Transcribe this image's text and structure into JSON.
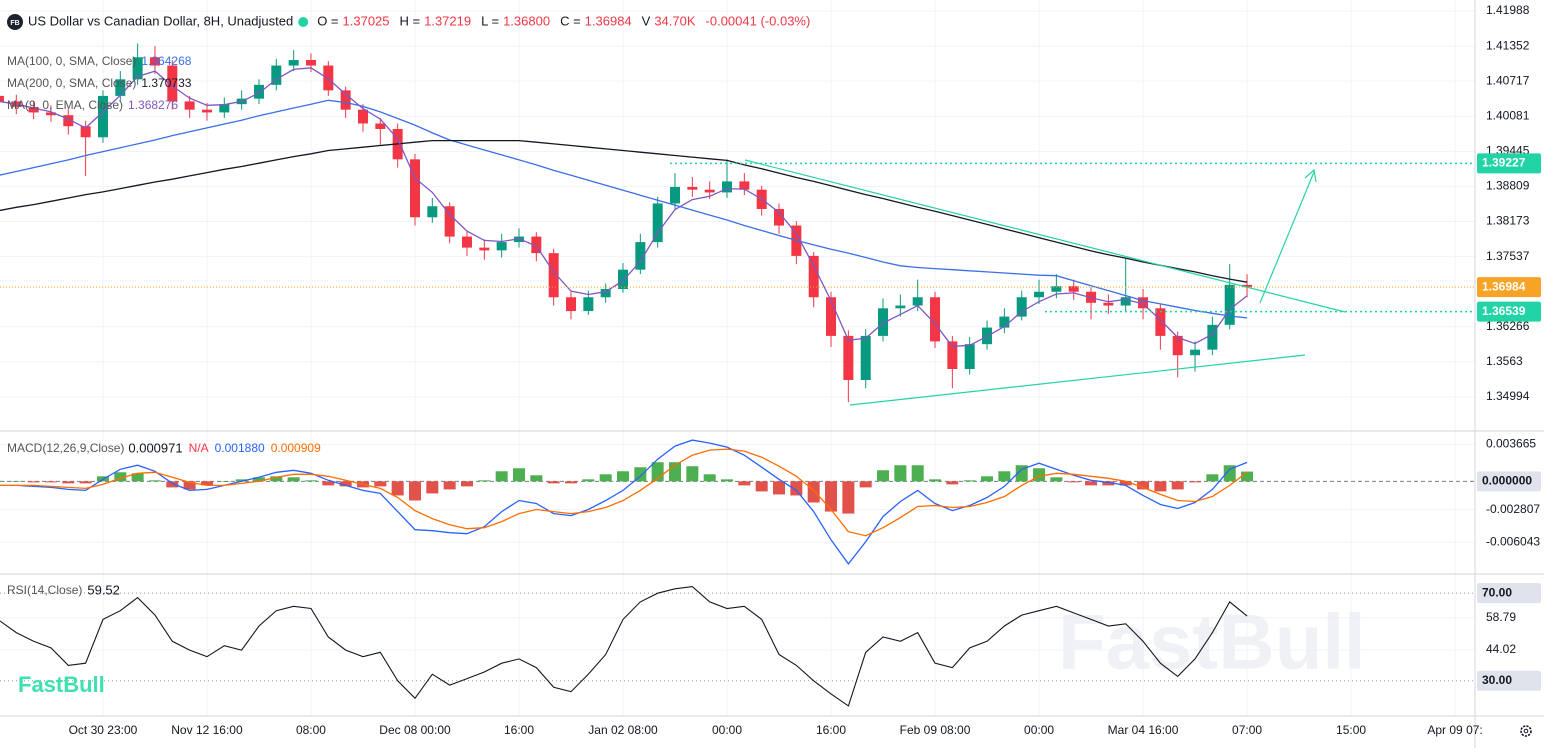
{
  "header": {
    "logo": "FB",
    "symbol": "US Dollar vs Canadian Dollar, 8H, Unadjusted",
    "stats": [
      {
        "label": "O =",
        "value": "1.37025"
      },
      {
        "label": "H =",
        "value": "1.37219"
      },
      {
        "label": "L =",
        "value": "1.36800"
      },
      {
        "label": "C =",
        "value": "1.36984"
      },
      {
        "label": "V",
        "value": "34.70K"
      }
    ],
    "change": "-0.00041 (-0.03%)",
    "watermark": "FastBull"
  },
  "chart_data": [
    {
      "type": "candlestick",
      "up_color": "#089981",
      "down_color": "#f23645",
      "xlim": [
        0.06,
        85.15
      ],
      "xticks": [
        {
          "value": 6,
          "label": "Oct 30 23:00"
        },
        {
          "value": 12,
          "label": "Nov 12 16:00"
        },
        {
          "value": 18,
          "label": "08:00"
        },
        {
          "value": 24,
          "label": "Dec 08 00:00"
        },
        {
          "value": 30,
          "label": "16:00"
        },
        {
          "value": 36,
          "label": "Jan 02 08:00"
        },
        {
          "value": 42,
          "label": "00:00"
        },
        {
          "value": 48,
          "label": "16:00"
        },
        {
          "value": 54,
          "label": "Feb 09 08:00"
        },
        {
          "value": 60,
          "label": "00:00"
        },
        {
          "value": 66,
          "label": "Mar 04 16:00"
        },
        {
          "value": 72,
          "label": "07:00"
        },
        {
          "value": 78,
          "label": "15:00"
        },
        {
          "value": 84,
          "label": "Apr 09 07:"
        }
      ],
      "ylim": [
        1.34376,
        1.42188
      ],
      "yticks": [
        1.41988,
        1.41352,
        1.40717,
        1.40081,
        1.39445,
        1.38809,
        1.38173,
        1.37537,
        1.36266,
        1.3563,
        1.34994
      ],
      "last_price_color": "#f7a325",
      "price_markers": [
        {
          "value": 1.39227,
          "color": "#22d3a5"
        },
        {
          "value": 1.36539,
          "color": "#22d3a5"
        }
      ],
      "open": [
        1.4045,
        1.4035,
        1.4025,
        1.4015,
        1.401,
        1.399,
        1.397,
        1.4045,
        1.4075,
        1.4115,
        1.41,
        1.4035,
        1.402,
        1.4015,
        1.403,
        1.404,
        1.4065,
        1.41,
        1.411,
        1.41,
        1.4055,
        1.402,
        1.3995,
        1.3985,
        1.393,
        1.3825,
        1.3845,
        1.379,
        1.377,
        1.3765,
        1.378,
        1.379,
        1.376,
        1.368,
        1.3655,
        1.368,
        1.3695,
        1.373,
        1.378,
        1.385,
        1.388,
        1.3875,
        1.387,
        1.389,
        1.3875,
        1.384,
        1.381,
        1.3755,
        1.368,
        1.361,
        1.353,
        1.361,
        1.366,
        1.3665,
        1.368,
        1.36,
        1.355,
        1.3595,
        1.3625,
        1.3645,
        1.368,
        1.369,
        1.37,
        1.369,
        1.367,
        1.3665,
        1.368,
        1.366,
        1.361,
        1.3575,
        1.3585,
        1.363,
        1.37025
      ],
      "high": [
        1.4058,
        1.4047,
        1.4036,
        1.4028,
        1.4021,
        1.4,
        1.4055,
        1.409,
        1.414,
        1.4135,
        1.411,
        1.4045,
        1.4032,
        1.4042,
        1.4055,
        1.4075,
        1.4112,
        1.4128,
        1.4122,
        1.4108,
        1.4062,
        1.403,
        1.4005,
        1.3995,
        1.394,
        1.386,
        1.3852,
        1.38,
        1.3785,
        1.3795,
        1.3805,
        1.3798,
        1.3768,
        1.369,
        1.3692,
        1.3705,
        1.3742,
        1.3795,
        1.3862,
        1.3905,
        1.3898,
        1.389,
        1.393,
        1.3905,
        1.3882,
        1.385,
        1.3818,
        1.3762,
        1.369,
        1.362,
        1.3622,
        1.3678,
        1.3685,
        1.3712,
        1.369,
        1.361,
        1.3608,
        1.3638,
        1.366,
        1.3692,
        1.3712,
        1.3722,
        1.3712,
        1.3698,
        1.3685,
        1.375,
        1.3695,
        1.3668,
        1.3618,
        1.36,
        1.3645,
        1.374,
        1.37219
      ],
      "low": [
        1.4022,
        1.4012,
        1.4003,
        1.3998,
        1.3975,
        1.39,
        1.396,
        1.4035,
        1.4065,
        1.4085,
        1.402,
        1.4005,
        1.4,
        1.4005,
        1.402,
        1.403,
        1.4055,
        1.409,
        1.4088,
        1.4045,
        1.4005,
        1.398,
        1.3955,
        1.3915,
        1.381,
        1.3815,
        1.3778,
        1.3755,
        1.3748,
        1.3752,
        1.377,
        1.3745,
        1.3665,
        1.364,
        1.3648,
        1.367,
        1.3688,
        1.3722,
        1.377,
        1.384,
        1.3862,
        1.3858,
        1.386,
        1.3865,
        1.3828,
        1.3795,
        1.374,
        1.3662,
        1.359,
        1.349,
        1.3515,
        1.36,
        1.3645,
        1.3655,
        1.3588,
        1.3515,
        1.354,
        1.3585,
        1.3615,
        1.3638,
        1.3668,
        1.3678,
        1.3675,
        1.364,
        1.365,
        1.3655,
        1.364,
        1.3585,
        1.3535,
        1.3545,
        1.3575,
        1.3622,
        1.368
      ],
      "close": [
        1.4035,
        1.4025,
        1.4015,
        1.401,
        1.399,
        1.397,
        1.4045,
        1.4075,
        1.4115,
        1.41,
        1.4035,
        1.402,
        1.4015,
        1.403,
        1.404,
        1.4065,
        1.41,
        1.411,
        1.41,
        1.4055,
        1.402,
        1.3995,
        1.3985,
        1.393,
        1.3825,
        1.3845,
        1.379,
        1.377,
        1.3765,
        1.378,
        1.379,
        1.376,
        1.368,
        1.3655,
        1.368,
        1.3695,
        1.373,
        1.378,
        1.385,
        1.388,
        1.3875,
        1.387,
        1.389,
        1.3875,
        1.384,
        1.381,
        1.3755,
        1.368,
        1.361,
        1.353,
        1.361,
        1.366,
        1.3665,
        1.368,
        1.36,
        1.355,
        1.3595,
        1.3625,
        1.3645,
        1.368,
        1.369,
        1.37,
        1.369,
        1.367,
        1.3665,
        1.368,
        1.366,
        1.361,
        1.3575,
        1.3585,
        1.363,
        1.37025,
        1.36984
      ],
      "overlays": [
        {
          "name": "MA(100, 0, SMA, Close)",
          "color": "#3b6ee8",
          "values": [
            1.3901,
            1.3908,
            1.3915,
            1.3922,
            1.3929,
            1.3937,
            1.3944,
            1.3951,
            1.3958,
            1.3965,
            1.3973,
            1.398,
            1.3987,
            1.3994,
            1.4001,
            1.4009,
            1.4016,
            1.4023,
            1.403,
            1.4037,
            1.4033,
            1.4026,
            1.4016,
            1.4004,
            1.3992,
            1.3978,
            1.3965,
            1.3956,
            1.3947,
            1.3938,
            1.3929,
            1.392,
            1.391,
            1.3901,
            1.3892,
            1.3883,
            1.3874,
            1.3865,
            1.3856,
            1.3847,
            1.3838,
            1.3829,
            1.382,
            1.381,
            1.3801,
            1.3792,
            1.3783,
            1.3775,
            1.3767,
            1.376,
            1.3752,
            1.3744,
            1.3737,
            1.3734,
            1.3732,
            1.373,
            1.3728,
            1.3726,
            1.3724,
            1.3722,
            1.372,
            1.3719,
            1.371,
            1.3701,
            1.3692,
            1.3683,
            1.3674,
            1.3668,
            1.3662,
            1.3656,
            1.3651,
            1.3646,
            1.364268
          ]
        },
        {
          "name": "MA(200, 0, SMA, Close)",
          "color": "#131722",
          "values": [
            1.3837,
            1.3843,
            1.3848,
            1.3854,
            1.386,
            1.3866,
            1.3871,
            1.3877,
            1.3883,
            1.3889,
            1.3894,
            1.39,
            1.3906,
            1.3912,
            1.3917,
            1.3923,
            1.3929,
            1.3935,
            1.394,
            1.3946,
            1.3949,
            1.3952,
            1.3955,
            1.3958,
            1.3961,
            1.3964,
            1.3964,
            1.3964,
            1.3964,
            1.3964,
            1.3964,
            1.3961,
            1.3958,
            1.3955,
            1.3952,
            1.3949,
            1.3946,
            1.3943,
            1.394,
            1.3937,
            1.3934,
            1.3931,
            1.3928,
            1.392,
            1.3913,
            1.3905,
            1.3897,
            1.389,
            1.3882,
            1.3874,
            1.3866,
            1.3859,
            1.3851,
            1.3843,
            1.3836,
            1.3828,
            1.382,
            1.3812,
            1.3804,
            1.3796,
            1.3788,
            1.378,
            1.3772,
            1.3764,
            1.3757,
            1.3751,
            1.3744,
            1.3738,
            1.3732,
            1.3726,
            1.3719,
            1.3713,
            1.370733
          ]
        },
        {
          "name": "MA(9, 0, EMA, Close)",
          "color": "#7e57c2",
          "values": [
            1.4035,
            1.403,
            1.4023,
            1.4016,
            1.4003,
            1.3987,
            1.4016,
            1.4046,
            1.408,
            1.409,
            1.4063,
            1.4041,
            1.4028,
            1.4029,
            1.4035,
            1.405,
            1.4075,
            1.4093,
            1.4096,
            1.4076,
            1.4048,
            1.4022,
            1.4003,
            1.3967,
            1.3896,
            1.387,
            1.383,
            1.38,
            1.3783,
            1.3781,
            1.3786,
            1.3773,
            1.3726,
            1.3691,
            1.3685,
            1.369,
            1.371,
            1.3745,
            1.3797,
            1.3839,
            1.3857,
            1.3863,
            1.3877,
            1.3876,
            1.3858,
            1.3834,
            1.3795,
            1.3737,
            1.3674,
            1.3602,
            1.3606,
            1.3633,
            1.3649,
            1.3665,
            1.3632,
            1.3591,
            1.3593,
            1.3609,
            1.3627,
            1.3654,
            1.3672,
            1.3686,
            1.3688,
            1.3679,
            1.3672,
            1.3676,
            1.3668,
            1.3639,
            1.3607,
            1.3596,
            1.3613,
            1.3658,
            1.368276
          ]
        }
      ]
    },
    {
      "type": "macd",
      "title": "MACD(12,26,9,Close)",
      "na_label": "N/A",
      "ylim": [
        -0.0092,
        0.0049
      ],
      "yticks": [
        0.003665,
        -0.002807,
        -0.006043
      ],
      "zero_marker": {
        "value": 0,
        "label": "0.000000"
      },
      "histogram": {
        "pos_color": "#4caf50",
        "neg_color": "#e0524a",
        "values": [
          0,
          0,
          -0.0001,
          -0.0001,
          -0.0002,
          -0.0002,
          0.0005,
          0.0009,
          0.0008,
          0.0001,
          -0.0006,
          -0.0008,
          -0.0004,
          0,
          0.0002,
          0.0004,
          0.0005,
          0.0004,
          0.0001,
          -0.0004,
          -0.0005,
          -0.0006,
          -0.0005,
          -0.0014,
          -0.0019,
          -0.0012,
          -0.0008,
          -0.0005,
          0.0001,
          0.001,
          0.0013,
          0.0006,
          -0.0002,
          -0.0002,
          0.0002,
          0.0007,
          0.001,
          0.0014,
          0.0019,
          0.0019,
          0.0015,
          0.0007,
          0.0002,
          -0.0004,
          -0.001,
          -0.0013,
          -0.0014,
          -0.0021,
          -0.003,
          -0.0032,
          -0.0006,
          0.0011,
          0.0016,
          0.0016,
          0.0002,
          -0.0003,
          0.0001,
          0.0005,
          0.001,
          0.0016,
          0.0013,
          0.0004,
          -0.0001,
          -0.0004,
          -0.0004,
          -0.0004,
          -0.0008,
          -0.001,
          -0.0008,
          -0.0001,
          0.0007,
          0.0016,
          0.000971
        ]
      },
      "series": [
        {
          "name": "MACD",
          "color": "#2962ff",
          "legend_value": "0.001880",
          "values": [
            -0.0004,
            -0.0004,
            -0.0005,
            -0.0006,
            -0.0008,
            -0.0009,
            0.0002,
            0.0012,
            0.0016,
            0.001,
            -0.0002,
            -0.0009,
            -0.0008,
            -0.0004,
            0,
            0.0004,
            0.0009,
            0.0011,
            0.0008,
            0.0001,
            -0.0004,
            -0.0009,
            -0.0012,
            -0.003,
            -0.0048,
            -0.0049,
            -0.0051,
            -0.0052,
            -0.0045,
            -0.003,
            -0.0019,
            -0.0022,
            -0.0032,
            -0.0034,
            -0.0028,
            -0.0019,
            -0.0009,
            0.0005,
            0.0022,
            0.0035,
            0.0041,
            0.0038,
            0.0034,
            0.0026,
            0.0014,
            0.0002,
            -0.0009,
            -0.003,
            -0.0058,
            -0.0082,
            -0.006,
            -0.0035,
            -0.002,
            -0.0009,
            -0.0022,
            -0.0029,
            -0.0024,
            -0.0016,
            -0.0005,
            0.0012,
            0.0018,
            0.0012,
            0.0006,
            0.0001,
            -0.0001,
            -0.0004,
            -0.0014,
            -0.0023,
            -0.0027,
            -0.0021,
            -0.0008,
            0.0012,
            0.00188
          ]
        },
        {
          "name": "Signal",
          "color": "#ff6d00",
          "values": [
            -0.0004,
            -0.0004,
            -0.0004,
            -0.0005,
            -0.0006,
            -0.0007,
            -0.0003,
            0.0003,
            0.0008,
            0.0009,
            0.0004,
            -0.0001,
            -0.0004,
            -0.0004,
            -0.0002,
            0,
            0.0004,
            0.0007,
            0.0007,
            0.0005,
            0.0001,
            -0.0003,
            -0.0007,
            -0.0016,
            -0.0029,
            -0.0037,
            -0.0043,
            -0.0047,
            -0.0046,
            -0.004,
            -0.0032,
            -0.0028,
            -0.003,
            -0.0032,
            -0.003,
            -0.0026,
            -0.0019,
            -0.0009,
            0.0003,
            0.0016,
            0.0026,
            0.0031,
            0.0032,
            0.003,
            0.0024,
            0.0015,
            0.0005,
            -0.0009,
            -0.0028,
            -0.005,
            -0.0054,
            -0.0046,
            -0.0036,
            -0.0025,
            -0.0024,
            -0.0026,
            -0.0025,
            -0.0021,
            -0.0015,
            -0.0004,
            0.0005,
            0.0008,
            0.0007,
            0.0005,
            0.0003,
            0,
            -0.0006,
            -0.0013,
            -0.0019,
            -0.002,
            -0.0015,
            -0.0004,
            0.000909
          ]
        }
      ]
    },
    {
      "type": "rsi",
      "title": "RSI(14,Close)",
      "ylim": [
        13.9,
        78.3
      ],
      "yticks": [
        58.79,
        44.02
      ],
      "bands": [
        {
          "value": 70,
          "label": "70.00"
        },
        {
          "value": 30,
          "label": "30.00"
        }
      ],
      "series": [
        {
          "name": "RSI",
          "color": "#131722",
          "values": [
            57.6,
            52,
            48,
            45,
            37,
            38,
            58,
            62,
            68,
            60,
            48,
            44,
            41,
            46,
            44,
            55,
            62,
            64,
            63,
            50,
            44,
            41,
            43,
            30,
            22,
            33,
            28,
            31,
            34,
            38,
            40,
            36,
            27,
            25,
            33,
            42,
            58,
            66,
            70,
            72,
            73,
            66,
            63,
            64,
            58,
            42,
            37,
            30,
            24,
            18.5,
            43,
            50,
            48,
            52,
            38,
            36,
            45,
            48,
            55,
            60,
            62,
            64,
            61,
            58,
            55,
            56,
            48,
            38,
            32,
            40,
            52,
            66,
            59.52
          ]
        }
      ]
    }
  ]
}
